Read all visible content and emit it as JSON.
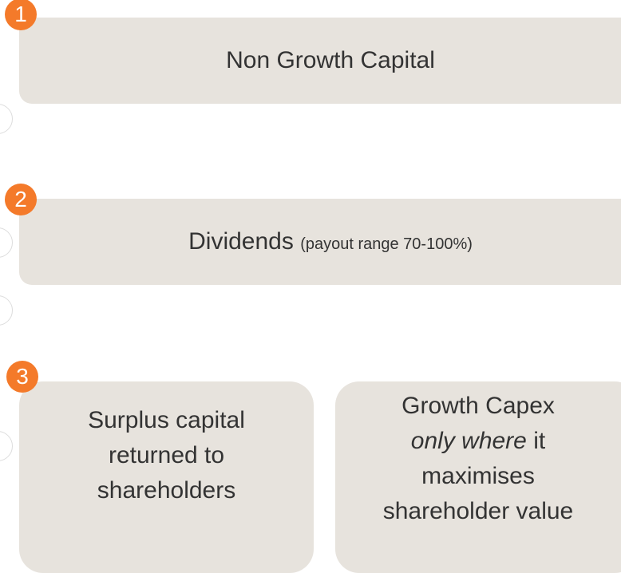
{
  "nodes": [
    {
      "number": "1",
      "label": "Non Growth Capital"
    },
    {
      "number": "2",
      "label": "Dividends",
      "note": "(payout range 70-100%)"
    },
    {
      "number": "3",
      "lines": [
        "Surplus capital",
        "returned to",
        "shareholders"
      ]
    },
    {
      "lines": [
        "Growth Capex",
        {
          "italic": "only where",
          "text": "it"
        },
        "maximises",
        "shareholder value"
      ]
    }
  ]
}
